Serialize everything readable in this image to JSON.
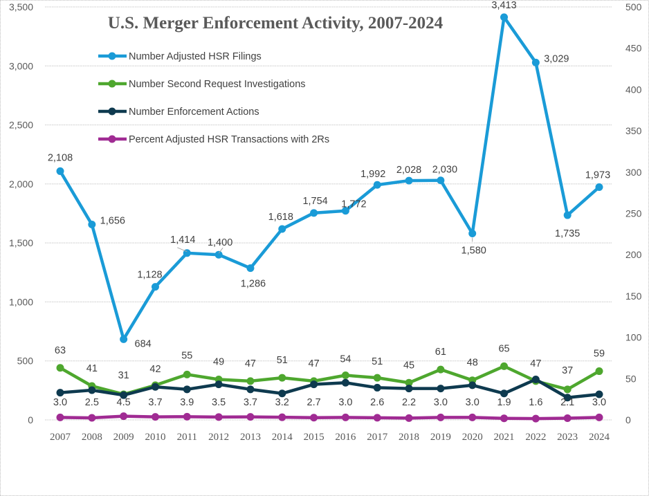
{
  "chart_data": {
    "type": "line",
    "title": "U.S. Merger Enforcement Activity, 2007-2024",
    "xlabel": "",
    "ylabel": "",
    "categories": [
      "2007",
      "2008",
      "2009",
      "2010",
      "2011",
      "2012",
      "2013",
      "2014",
      "2015",
      "2016",
      "2017",
      "2018",
      "2019",
      "2020",
      "2021",
      "2022",
      "2023",
      "2024"
    ],
    "y_left": {
      "range": [
        0,
        3500
      ],
      "ticks": [
        "0",
        "500",
        "1,000",
        "1,500",
        "2,000",
        "2,500",
        "3,000",
        "3,500"
      ],
      "tick_values": [
        0,
        500,
        1000,
        1500,
        2000,
        2500,
        3000,
        3500
      ]
    },
    "y_right": {
      "range": [
        0,
        500
      ],
      "ticks": [
        "0",
        "50",
        "100",
        "150",
        "200",
        "250",
        "300",
        "350",
        "400",
        "450",
        "500"
      ],
      "tick_values": [
        0,
        50,
        100,
        150,
        200,
        250,
        300,
        350,
        400,
        450,
        500
      ]
    },
    "grid": true,
    "legend_position": "top-left",
    "series": [
      {
        "name": "Number Adjusted HSR Filings",
        "axis": "left",
        "color": "#1A9BD7",
        "values": [
          2108,
          1656,
          684,
          1128,
          1414,
          1400,
          1286,
          1618,
          1754,
          1772,
          1992,
          2028,
          2030,
          1580,
          3413,
          3029,
          1735,
          1973
        ],
        "labels": [
          "2,108",
          "1,656",
          "684",
          "1,128",
          "1,414",
          "1,400",
          "1,286",
          "1,618",
          "1,754",
          "1,772",
          "1,992",
          "2,028",
          "2,030",
          "1,580",
          "3,413",
          "3,029",
          "1,735",
          "1,973"
        ]
      },
      {
        "name": "Number Second Request Investigations",
        "axis": "right",
        "color": "#4EA72E",
        "values": [
          63,
          41,
          31,
          42,
          55,
          49,
          47,
          51,
          47,
          54,
          51,
          45,
          61,
          48,
          65,
          47,
          37,
          59
        ],
        "labels": [
          "63",
          "41",
          "31",
          "42",
          "55",
          "49",
          "47",
          "51",
          "47",
          "54",
          "51",
          "45",
          "61",
          "48",
          "65",
          "47",
          "37",
          "59"
        ]
      },
      {
        "name": "Number Enforcement Actions",
        "axis": "right",
        "color": "#0E3A4F",
        "values": [
          33,
          36,
          30,
          40,
          37,
          43,
          37,
          32,
          43,
          45,
          39,
          38,
          38,
          42,
          32,
          49,
          27,
          31
        ],
        "labels": []
      },
      {
        "name": "Percent Adjusted HSR Transactions with 2Rs",
        "axis": "right",
        "color": "#A02B93",
        "values": [
          3.0,
          2.5,
          4.5,
          3.7,
          3.9,
          3.5,
          3.7,
          3.2,
          2.7,
          3.0,
          2.6,
          2.2,
          3.0,
          3.0,
          1.9,
          1.6,
          2.1,
          3.0
        ],
        "labels": [
          "3.0",
          "2.5",
          "4.5",
          "3.7",
          "3.9",
          "3.5",
          "3.7",
          "3.2",
          "2.7",
          "3.0",
          "2.6",
          "2.2",
          "3.0",
          "3.0",
          "1.9",
          "1.6",
          "2.1",
          "3.0"
        ]
      }
    ]
  }
}
